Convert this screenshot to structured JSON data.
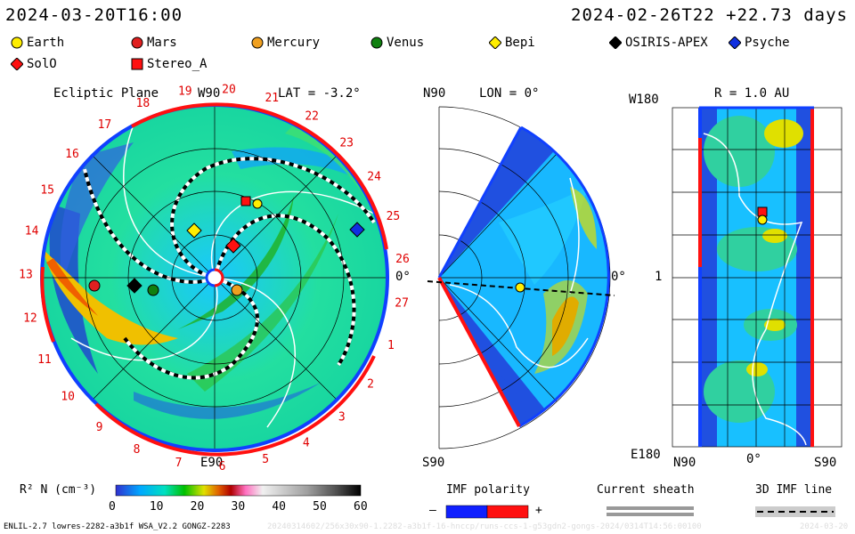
{
  "header": {
    "sim_time": "2024-03-20T16:00",
    "ref_time": "2024-02-26T22 +22.73 days"
  },
  "legend": [
    {
      "name": "Earth",
      "symbol": "circle",
      "color": "#ffee00"
    },
    {
      "name": "Mars",
      "symbol": "circle",
      "color": "#e02020"
    },
    {
      "name": "Mercury",
      "symbol": "circle",
      "color": "#f0a020"
    },
    {
      "name": "Venus",
      "symbol": "circle",
      "color": "#108010"
    },
    {
      "name": "Bepi",
      "symbol": "diamond",
      "color": "#ffee00"
    },
    {
      "name": "OSIRIS-APEX",
      "symbol": "diamond",
      "color": "#000000"
    },
    {
      "name": "Psyche",
      "symbol": "diamond",
      "color": "#1030e0"
    },
    {
      "name": "SolO",
      "symbol": "diamond",
      "color": "#ff1010"
    },
    {
      "name": "Stereo_A",
      "symbol": "square",
      "color": "#ff1010"
    }
  ],
  "panel1": {
    "title": "Ecliptic Plane",
    "w90": "W90",
    "lat": "LAT = -3.2°",
    "e90": "E90",
    "zero": "0°",
    "carrington_labels": [
      "19",
      "20",
      "21",
      "22",
      "23",
      "24",
      "25",
      "26",
      "27",
      "1",
      "2",
      "3",
      "4",
      "5",
      "6",
      "7",
      "8",
      "9",
      "10",
      "11",
      "12",
      "13",
      "14",
      "15",
      "16",
      "17",
      "18"
    ]
  },
  "panel2": {
    "n90": "N90",
    "lon": "LON = 0°",
    "s90": "S90",
    "zero": "0°"
  },
  "panel3": {
    "r": "R = 1.0 AU",
    "w180": "W180",
    "one": "1",
    "e180": "E180",
    "n90": "N90",
    "zero": "0°",
    "s90": "S90"
  },
  "colorbar": {
    "title": "R² N (cm⁻³)",
    "ticks": [
      "0",
      "10",
      "20",
      "30",
      "40",
      "50",
      "60"
    ]
  },
  "imf_polarity": {
    "title": "IMF polarity",
    "minus": "–",
    "plus": "+"
  },
  "current_sheath": {
    "title": "Current sheath"
  },
  "imf_line": {
    "title": "3D IMF line"
  },
  "footer": {
    "left": "ENLIL-2.7 lowres-2282-a3b1f WSA_V2.2 GONGZ-2283",
    "faint": "20240314602/256x30x90-1.2282-a3b1f-16-hnccp/runs-ccs-1-g53gdn2-gongs-2024/0314T14:56:00100",
    "right": "2024-03-20"
  }
}
